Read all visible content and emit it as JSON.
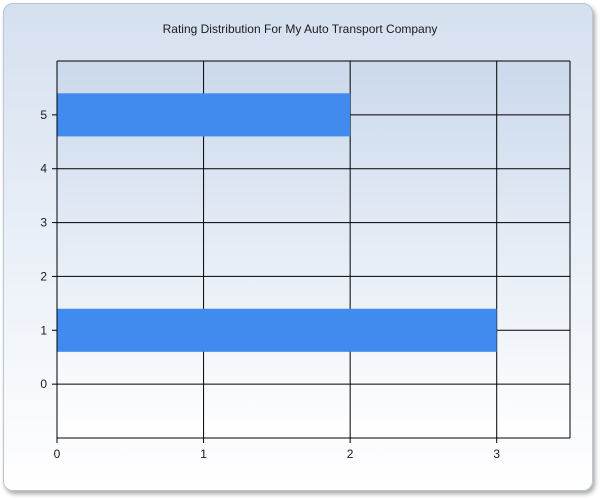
{
  "chart_data": {
    "type": "bar",
    "orientation": "horizontal",
    "title": "Rating Distribution For My Auto Transport Company",
    "xlabel": "",
    "ylabel": "",
    "categories": [
      5,
      4,
      3,
      2,
      1,
      0
    ],
    "values": [
      2,
      0,
      0,
      0,
      3,
      0
    ],
    "xlim": [
      0,
      3.5
    ],
    "ylim": [
      -1,
      6
    ],
    "x_ticks": [
      "0",
      "1",
      "2",
      "3"
    ],
    "y_ticks": [
      "0",
      "1",
      "2",
      "3",
      "4",
      "5"
    ],
    "grid": true,
    "legend": "none",
    "bar_color": "#418bef",
    "plot_background_top": "#cbd9ec",
    "plot_background_bottom": "#ffffff",
    "grid_color": "#000000"
  }
}
